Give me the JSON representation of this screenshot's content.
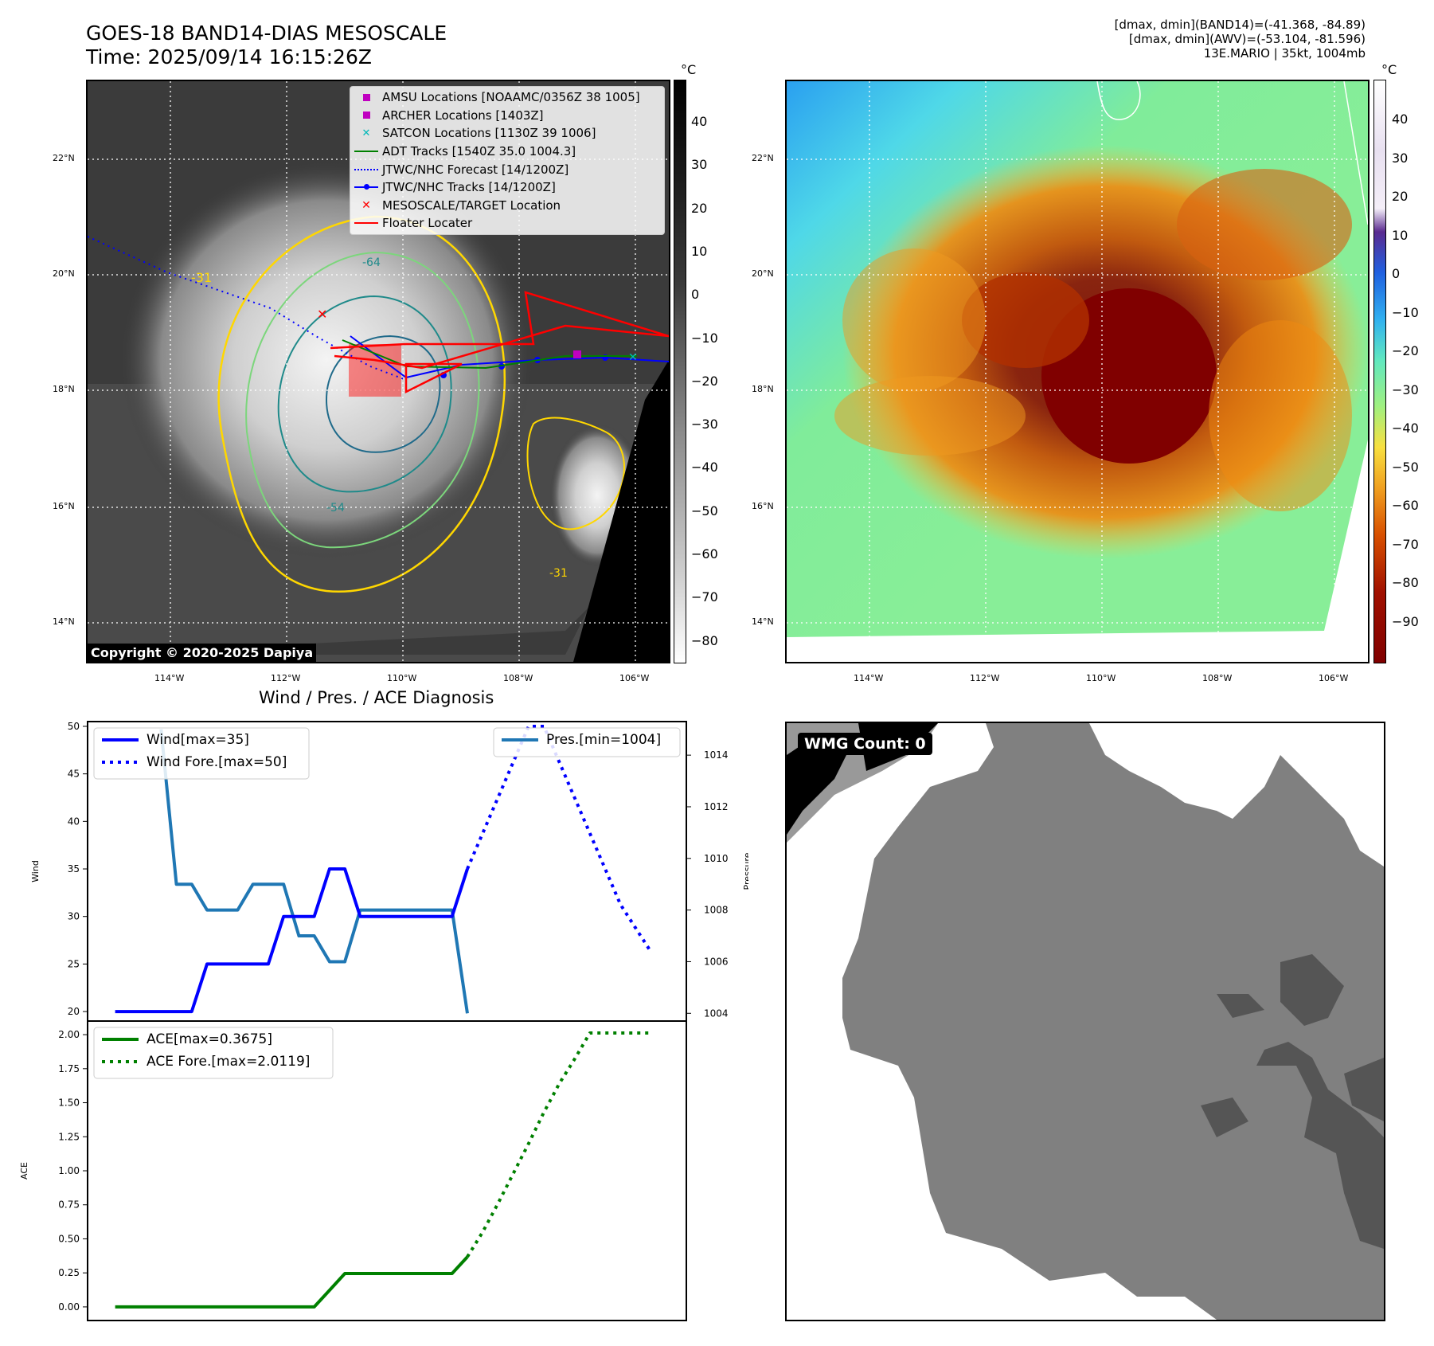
{
  "header": {
    "title_line1": "GOES-18 BAND14-DIAS MESOSCALE",
    "title_line2": "Time: 2025/09/14 16:15:26Z",
    "info_line1": "[dmax, dmin](BAND14)=(-41.368, -84.89)",
    "info_line2": "[dmax, dmin](AWV)=(-53.104, -81.596)",
    "info_line3": "13E.MARIO | 35kt, 1004mb"
  },
  "map": {
    "lat_labels": [
      "22°N",
      "20°N",
      "18°N",
      "16°N",
      "14°N"
    ],
    "lon_labels": [
      "114°W",
      "112°W",
      "110°W",
      "108°W",
      "106°W"
    ],
    "copyright": "Copyright © 2020-2025 Dapiya",
    "legend": [
      {
        "label": "AMSU Locations [NOAAMC/0356Z 38 1005]",
        "color": "#c000c0",
        "symbol": "square"
      },
      {
        "label": "ARCHER Locations [1403Z]",
        "color": "#c000c0",
        "symbol": "square"
      },
      {
        "label": "SATCON Locations [1130Z 39 1006]",
        "color": "#00b8b8",
        "symbol": "x"
      },
      {
        "label": "ADT Tracks [1540Z 35.0 1004.3]",
        "color": "#008000",
        "symbol": "line"
      },
      {
        "label": "JTWC/NHC Forecast [14/1200Z]",
        "color": "#0000ff",
        "symbol": "dotted"
      },
      {
        "label": "JTWC/NHC Tracks [14/1200Z]",
        "color": "#0000ff",
        "symbol": "line-dot"
      },
      {
        "label": "MESOSCALE/TARGET Location",
        "color": "#ff0000",
        "symbol": "x"
      },
      {
        "label": "Floater Locater",
        "color": "#ff0000",
        "symbol": "line"
      }
    ],
    "contour_labels": [
      "-31",
      "-64",
      "-54",
      "-31"
    ]
  },
  "colorbar_left": {
    "unit": "°C",
    "ticks": [
      "40",
      "30",
      "20",
      "10",
      "0",
      "−10",
      "−20",
      "−30",
      "−40",
      "−50",
      "−60",
      "−70",
      "−80"
    ]
  },
  "colorbar_right": {
    "unit": "°C",
    "ticks": [
      "40",
      "30",
      "20",
      "10",
      "0",
      "−10",
      "−20",
      "−30",
      "−40",
      "−50",
      "−60",
      "−70",
      "−80",
      "−90"
    ]
  },
  "wmg": {
    "label": "WMG Count: 0"
  },
  "chart_data": [
    {
      "type": "line",
      "title": "Wind / Pres. / ACE Diagnosis",
      "ylabel": "Wind",
      "ylim": [
        19,
        50.5
      ],
      "y_ticks": [
        20,
        25,
        30,
        35,
        40,
        45,
        50
      ],
      "series": [
        {
          "name": "Wind[max=35]",
          "style": "solid",
          "color": "#0000ff",
          "x": [
            0,
            1,
            2,
            3,
            4,
            5,
            6,
            7,
            8,
            9,
            10,
            11,
            12,
            13,
            14,
            15,
            16,
            17,
            18,
            19,
            20,
            21,
            22,
            23
          ],
          "values": [
            20,
            20,
            20,
            20,
            20,
            20,
            25,
            25,
            25,
            25,
            25,
            30,
            30,
            30,
            35,
            35,
            30,
            30,
            30,
            30,
            30,
            30,
            30,
            35
          ]
        },
        {
          "name": "Wind Fore.[max=50]",
          "style": "dotted",
          "color": "#0000ff",
          "x": [
            23,
            24,
            25,
            26,
            27,
            28,
            29,
            30,
            31,
            32,
            33,
            34,
            35
          ],
          "values": [
            35,
            38.75,
            42.5,
            46.25,
            50,
            50,
            46.25,
            42.5,
            38.75,
            35,
            31.25,
            28.75,
            26.25
          ]
        }
      ]
    },
    {
      "type": "line",
      "ylabel": "Pressure",
      "ylim": [
        1003.7,
        1015.3
      ],
      "y_ticks": [
        1004,
        1006,
        1008,
        1010,
        1012,
        1014
      ],
      "series": [
        {
          "name": "Pres.[min=1004]",
          "style": "solid",
          "color": "#1f77b4",
          "x": [
            3,
            4,
            5,
            6,
            7,
            8,
            9,
            10,
            11,
            12,
            13,
            14,
            15,
            16,
            17,
            18,
            19,
            20,
            21,
            22,
            23
          ],
          "values": [
            1015,
            1009,
            1009,
            1008,
            1008,
            1008,
            1009,
            1009,
            1009,
            1007,
            1007,
            1006,
            1006,
            1008,
            1008,
            1008,
            1008,
            1008,
            1008,
            1008,
            1004
          ]
        }
      ]
    },
    {
      "type": "line",
      "ylabel": "ACE",
      "ylim": [
        -0.1,
        2.1
      ],
      "y_ticks": [
        "0.00",
        "0.25",
        "0.50",
        "0.75",
        "1.00",
        "1.25",
        "1.50",
        "1.75",
        "2.00"
      ],
      "series": [
        {
          "name": "ACE[max=0.3675]",
          "style": "solid",
          "color": "#008000",
          "x": [
            0,
            1,
            2,
            3,
            4,
            5,
            6,
            7,
            8,
            9,
            10,
            11,
            12,
            13,
            14,
            15,
            16,
            17,
            18,
            19,
            20,
            21,
            22,
            23
          ],
          "values": [
            0,
            0,
            0,
            0,
            0,
            0,
            0,
            0,
            0,
            0,
            0,
            0,
            0,
            0,
            0.1225,
            0.245,
            0.245,
            0.245,
            0.245,
            0.245,
            0.245,
            0.245,
            0.245,
            0.3675
          ]
        },
        {
          "name": "ACE Fore.[max=2.0119]",
          "style": "dotted",
          "color": "#008000",
          "x": [
            23,
            24,
            25,
            26,
            27,
            28,
            29,
            30,
            31,
            32,
            33,
            34,
            35
          ],
          "values": [
            0.3675,
            0.55,
            0.76,
            0.98,
            1.2,
            1.43,
            1.64,
            1.82,
            2.0119,
            2.0119,
            2.0119,
            2.0119,
            2.0119
          ]
        }
      ]
    }
  ]
}
